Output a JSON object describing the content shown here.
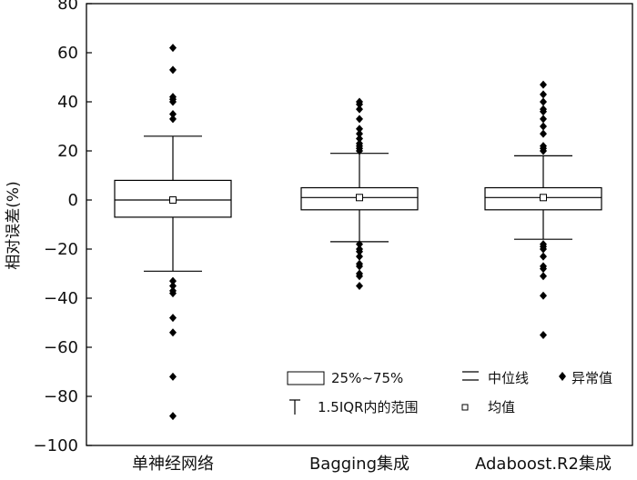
{
  "chart_data": {
    "type": "boxplot",
    "ylabel": "相对误差(%)",
    "ylim": [
      -100,
      80
    ],
    "yticks": [
      80,
      60,
      40,
      20,
      0,
      -20,
      -40,
      -60,
      -80,
      -100
    ],
    "ytick_labels": [
      "80",
      "60",
      "40",
      "20",
      "0",
      "−20",
      "−40",
      "−60",
      "−80",
      "−100"
    ],
    "categories": [
      "单神经网络",
      "Bagging集成",
      "Adaboost.R2集成"
    ],
    "boxes": [
      {
        "q1": -7,
        "median": 0,
        "q3": 8,
        "mean": 0,
        "whisker_low": -29,
        "whisker_high": 26,
        "outliers": [
          62,
          53,
          42,
          41,
          40,
          35,
          33,
          -33,
          -35,
          -37,
          -38,
          -48,
          -54,
          -72,
          -88
        ]
      },
      {
        "q1": -4,
        "median": 1,
        "q3": 5,
        "mean": 1,
        "whisker_low": -17,
        "whisker_high": 19,
        "outliers": [
          40,
          39,
          37,
          33,
          29,
          27,
          25,
          23,
          22,
          21,
          20,
          -18,
          -20,
          -21,
          -23,
          -26,
          -27,
          -30,
          -31,
          -35
        ]
      },
      {
        "q1": -4,
        "median": 1,
        "q3": 5,
        "mean": 1,
        "whisker_low": -16,
        "whisker_high": 18,
        "outliers": [
          47,
          43,
          40,
          37,
          36,
          33,
          30,
          27,
          22,
          21,
          20,
          -18,
          -19,
          -20,
          -23,
          -27,
          -28,
          -31,
          -39,
          -55
        ]
      }
    ],
    "legend": {
      "box": "25%~75%",
      "median": "中位线",
      "outlier": "异常值",
      "whisker": "1.5IQR内的范围",
      "mean": "均值"
    }
  }
}
